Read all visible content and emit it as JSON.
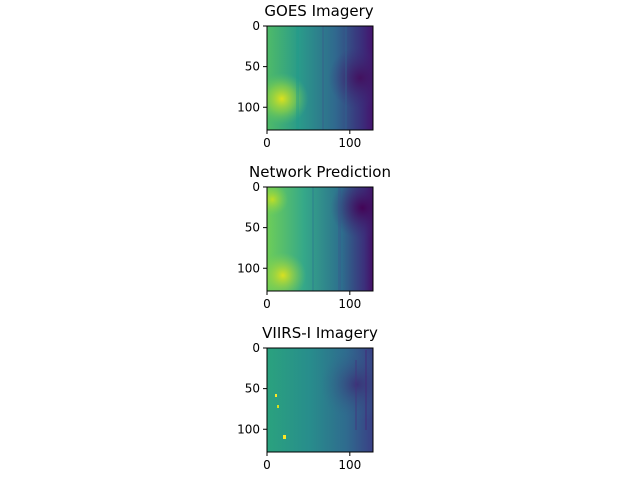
{
  "chart_data": [
    {
      "type": "heatmap",
      "title": "GOES Imagery",
      "colormap": "viridis",
      "xlim": [
        0,
        128
      ],
      "ylim": [
        128,
        0
      ],
      "x_ticks": [
        0,
        100
      ],
      "y_ticks": [
        0,
        50,
        100
      ],
      "x_tick_labels": [
        "0",
        "100"
      ],
      "y_tick_labels": [
        "0",
        "50",
        "100"
      ],
      "grid": false,
      "dominant_value": 0.5
    },
    {
      "type": "heatmap",
      "title": "Network Prediction",
      "colormap": "viridis",
      "xlim": [
        0,
        128
      ],
      "ylim": [
        128,
        0
      ],
      "x_ticks": [
        0,
        100
      ],
      "y_ticks": [
        0,
        50,
        100
      ],
      "x_tick_labels": [
        "0",
        "100"
      ],
      "y_tick_labels": [
        "0",
        "50",
        "100"
      ],
      "grid": false,
      "dominant_value": 0.5
    },
    {
      "type": "heatmap",
      "title": "VIIRS-I Imagery",
      "colormap": "viridis",
      "xlim": [
        0,
        128
      ],
      "ylim": [
        128,
        0
      ],
      "x_ticks": [
        0,
        100
      ],
      "y_ticks": [
        0,
        50,
        100
      ],
      "x_tick_labels": [
        "0",
        "100"
      ],
      "y_tick_labels": [
        "0",
        "50",
        "100"
      ],
      "grid": false,
      "dominant_value": 0.4
    }
  ]
}
